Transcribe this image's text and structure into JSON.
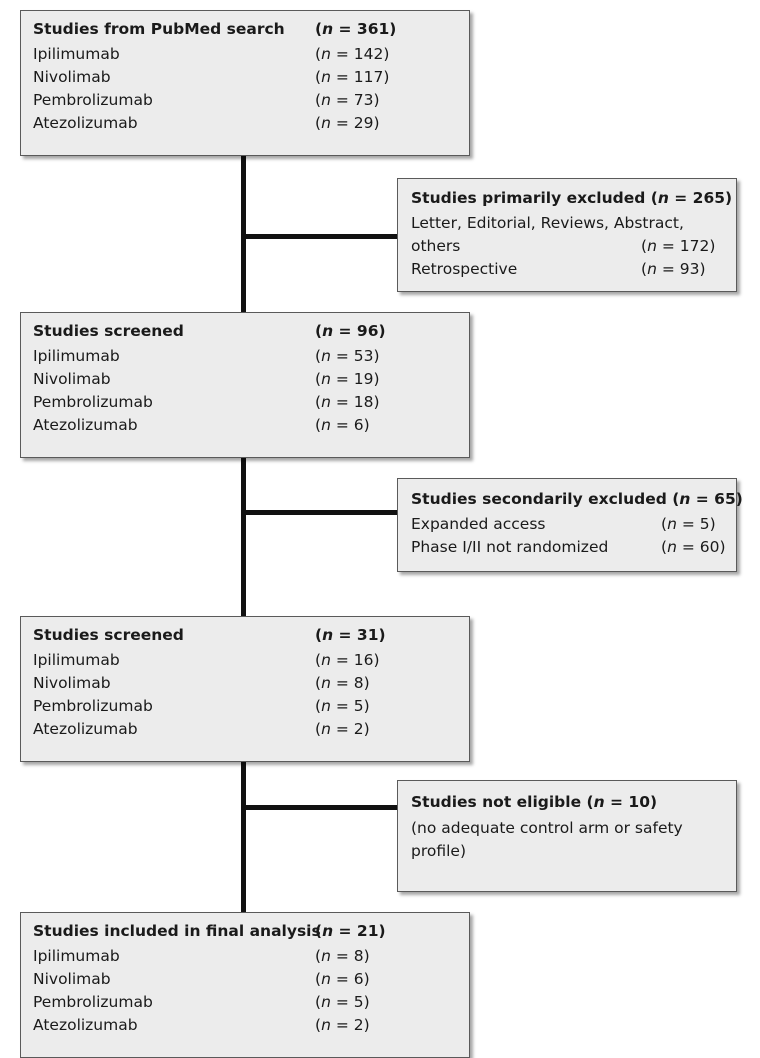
{
  "boxes": {
    "pubmed": {
      "title": "Studies from PubMed search",
      "title_n": "361",
      "items": [
        {
          "label": "Ipilimumab",
          "n": "142"
        },
        {
          "label": "Nivolimab",
          "n": "117"
        },
        {
          "label": "Pembrolizumab",
          "n": "73"
        },
        {
          "label": "Atezolizumab",
          "n": "29"
        }
      ]
    },
    "primary_excluded": {
      "title": "Studies primarily excluded",
      "title_n": " 265",
      "items": [
        {
          "label": "Letter, Editorial, Reviews, Abstract,",
          "n": ""
        },
        {
          "label": "others",
          "n": "172"
        },
        {
          "label": "Retrospective",
          "n": "93"
        }
      ]
    },
    "screened_1": {
      "title": "Studies screened",
      "title_n": "96",
      "items": [
        {
          "label": "Ipilimumab",
          "n": "53"
        },
        {
          "label": "Nivolimab",
          "n": "19"
        },
        {
          "label": "Pembrolizumab",
          "n": "18"
        },
        {
          "label": "Atezolizumab",
          "n": "6"
        }
      ]
    },
    "secondary_excluded": {
      "title": "Studies secondarily excluded",
      "title_n": "65",
      "items": [
        {
          "label": "Expanded access",
          "n": "5"
        },
        {
          "label": "Phase I/II not randomized",
          "n": "60"
        }
      ]
    },
    "screened_2": {
      "title": "Studies screened",
      "title_n": "31",
      "items": [
        {
          "label": "Ipilimumab",
          "n": "16"
        },
        {
          "label": "Nivolimab",
          "n": "8"
        },
        {
          "label": "Pembrolizumab",
          "n": "5"
        },
        {
          "label": "Atezolizumab",
          "n": "2"
        }
      ]
    },
    "not_eligible": {
      "title": "Studies not eligible",
      "title_n": "10",
      "lines": [
        "(no adequate control arm or safety",
        "profile)"
      ]
    },
    "final": {
      "title": "Studies included in final analysis",
      "title_n": "21",
      "items": [
        {
          "label": "Ipilimumab",
          "n": "8"
        },
        {
          "label": "Nivolimab",
          "n": "6"
        },
        {
          "label": "Pembrolizumab",
          "n": "5"
        },
        {
          "label": "Atezolizumab",
          "n": "2"
        }
      ]
    }
  }
}
